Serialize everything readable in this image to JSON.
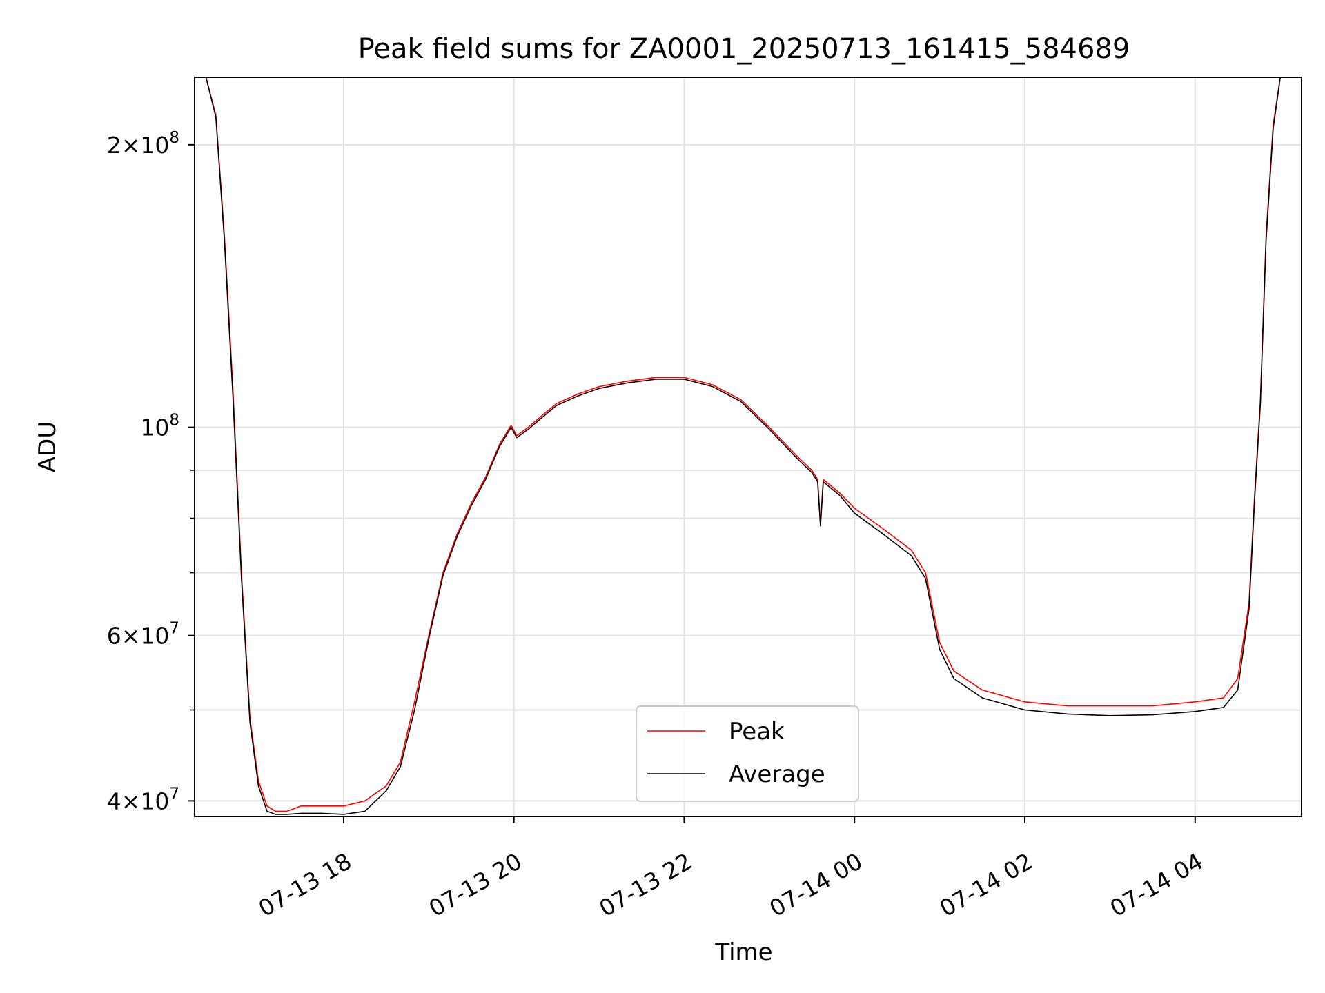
{
  "chart_data": {
    "type": "line",
    "title": "Peak field sums for ZA0001_20250713_161415_584689",
    "xlabel": "Time",
    "ylabel": "ADU",
    "yscale": "log",
    "grid": true,
    "legend_position": "lower-center",
    "xlim": [
      "2025-07-13 16:15",
      "2025-07-14 05:15"
    ],
    "ylim": [
      38500000,
      236000000
    ],
    "x_ticks": [
      {
        "value": "2025-07-13 18:00",
        "label": "07-13 18"
      },
      {
        "value": "2025-07-13 20:00",
        "label": "07-13 20"
      },
      {
        "value": "2025-07-13 22:00",
        "label": "07-13 22"
      },
      {
        "value": "2025-07-14 00:00",
        "label": "07-14 00"
      },
      {
        "value": "2025-07-14 02:00",
        "label": "07-14 02"
      },
      {
        "value": "2025-07-14 04:00",
        "label": "07-14 04"
      }
    ],
    "y_major_ticks": [
      {
        "value": 40000000,
        "mantissa": "4",
        "exponent": "7"
      },
      {
        "value": 60000000,
        "mantissa": "6",
        "exponent": "7"
      },
      {
        "value": 100000000,
        "mantissa": "",
        "exponent": "8"
      },
      {
        "value": 200000000,
        "mantissa": "2",
        "exponent": "8"
      }
    ],
    "y_minor_ticks": [
      50000000,
      70000000,
      80000000,
      90000000
    ],
    "colors": {
      "Peak": "#ff0000",
      "Average": "#000000"
    },
    "series": [
      {
        "name": "Peak",
        "x": [
          "2025-07-13 16:23",
          "2025-07-13 16:30",
          "2025-07-13 16:36",
          "2025-07-13 16:42",
          "2025-07-13 16:48",
          "2025-07-13 16:54",
          "2025-07-13 17:00",
          "2025-07-13 17:06",
          "2025-07-13 17:12",
          "2025-07-13 17:20",
          "2025-07-13 17:30",
          "2025-07-13 17:45",
          "2025-07-13 18:00",
          "2025-07-13 18:15",
          "2025-07-13 18:30",
          "2025-07-13 18:40",
          "2025-07-13 18:50",
          "2025-07-13 19:00",
          "2025-07-13 19:10",
          "2025-07-13 19:20",
          "2025-07-13 19:30",
          "2025-07-13 19:40",
          "2025-07-13 19:50",
          "2025-07-13 19:58",
          "2025-07-13 20:02",
          "2025-07-13 20:10",
          "2025-07-13 20:20",
          "2025-07-13 20:30",
          "2025-07-13 20:45",
          "2025-07-13 21:00",
          "2025-07-13 21:20",
          "2025-07-13 21:40",
          "2025-07-13 22:00",
          "2025-07-13 22:20",
          "2025-07-13 22:40",
          "2025-07-13 23:00",
          "2025-07-13 23:20",
          "2025-07-13 23:30",
          "2025-07-13 23:34",
          "2025-07-13 23:36",
          "2025-07-13 23:38",
          "2025-07-13 23:50",
          "2025-07-14 00:00",
          "2025-07-14 00:20",
          "2025-07-14 00:40",
          "2025-07-14 00:50",
          "2025-07-14 01:00",
          "2025-07-14 01:10",
          "2025-07-14 01:30",
          "2025-07-14 02:00",
          "2025-07-14 02:30",
          "2025-07-14 03:00",
          "2025-07-14 03:30",
          "2025-07-14 04:00",
          "2025-07-14 04:20",
          "2025-07-14 04:30",
          "2025-07-14 04:38",
          "2025-07-14 04:42",
          "2025-07-14 04:46",
          "2025-07-14 04:50",
          "2025-07-14 04:55",
          "2025-07-14 05:00",
          "2025-07-14 05:05"
        ],
        "y": [
          236000000,
          215000000,
          160000000,
          110000000,
          70000000,
          49000000,
          42000000,
          39500000,
          39000000,
          39000000,
          39500000,
          39500000,
          39500000,
          40000000,
          41500000,
          44000000,
          51000000,
          60000000,
          70000000,
          77000000,
          83000000,
          88500000,
          96000000,
          100500000,
          98000000,
          100000000,
          103000000,
          106000000,
          108500000,
          110500000,
          112000000,
          113000000,
          113000000,
          111000000,
          107000000,
          100000000,
          93000000,
          90000000,
          88000000,
          79000000,
          88000000,
          85000000,
          82000000,
          78000000,
          74000000,
          70000000,
          59000000,
          55000000,
          52500000,
          51000000,
          50500000,
          50500000,
          50500000,
          51000000,
          51500000,
          54000000,
          65000000,
          85000000,
          107000000,
          160000000,
          210000000,
          236000000,
          236000000
        ]
      },
      {
        "name": "Average",
        "x": [
          "2025-07-13 16:23",
          "2025-07-13 16:30",
          "2025-07-13 16:36",
          "2025-07-13 16:42",
          "2025-07-13 16:48",
          "2025-07-13 16:54",
          "2025-07-13 17:00",
          "2025-07-13 17:06",
          "2025-07-13 17:12",
          "2025-07-13 17:20",
          "2025-07-13 17:30",
          "2025-07-13 17:45",
          "2025-07-13 18:00",
          "2025-07-13 18:15",
          "2025-07-13 18:30",
          "2025-07-13 18:40",
          "2025-07-13 18:50",
          "2025-07-13 19:00",
          "2025-07-13 19:10",
          "2025-07-13 19:20",
          "2025-07-13 19:30",
          "2025-07-13 19:40",
          "2025-07-13 19:50",
          "2025-07-13 19:58",
          "2025-07-13 20:02",
          "2025-07-13 20:10",
          "2025-07-13 20:20",
          "2025-07-13 20:30",
          "2025-07-13 20:45",
          "2025-07-13 21:00",
          "2025-07-13 21:20",
          "2025-07-13 21:40",
          "2025-07-13 22:00",
          "2025-07-13 22:20",
          "2025-07-13 22:40",
          "2025-07-13 23:00",
          "2025-07-13 23:20",
          "2025-07-13 23:30",
          "2025-07-13 23:34",
          "2025-07-13 23:36",
          "2025-07-13 23:38",
          "2025-07-13 23:50",
          "2025-07-14 00:00",
          "2025-07-14 00:20",
          "2025-07-14 00:40",
          "2025-07-14 00:50",
          "2025-07-14 01:00",
          "2025-07-14 01:10",
          "2025-07-14 01:30",
          "2025-07-14 02:00",
          "2025-07-14 02:30",
          "2025-07-14 03:00",
          "2025-07-14 03:30",
          "2025-07-14 04:00",
          "2025-07-14 04:20",
          "2025-07-14 04:30",
          "2025-07-14 04:38",
          "2025-07-14 04:42",
          "2025-07-14 04:46",
          "2025-07-14 04:50",
          "2025-07-14 04:55",
          "2025-07-14 05:00",
          "2025-07-14 05:05"
        ],
        "y": [
          236000000,
          214000000,
          158000000,
          108000000,
          69000000,
          48500000,
          41500000,
          39000000,
          38700000,
          38700000,
          38800000,
          38800000,
          38700000,
          39000000,
          41000000,
          43500000,
          50000000,
          59500000,
          69500000,
          76500000,
          82500000,
          88000000,
          95500000,
          100000000,
          97500000,
          99500000,
          102500000,
          105500000,
          108000000,
          110000000,
          111500000,
          112500000,
          112500000,
          110500000,
          106500000,
          99500000,
          92500000,
          89500000,
          87500000,
          78500000,
          87500000,
          84500000,
          81000000,
          77000000,
          73000000,
          69000000,
          58000000,
          54000000,
          51500000,
          50000000,
          49500000,
          49300000,
          49400000,
          49800000,
          50300000,
          52500000,
          64000000,
          84000000,
          106000000,
          158000000,
          208000000,
          236000000,
          236000000
        ]
      }
    ]
  }
}
